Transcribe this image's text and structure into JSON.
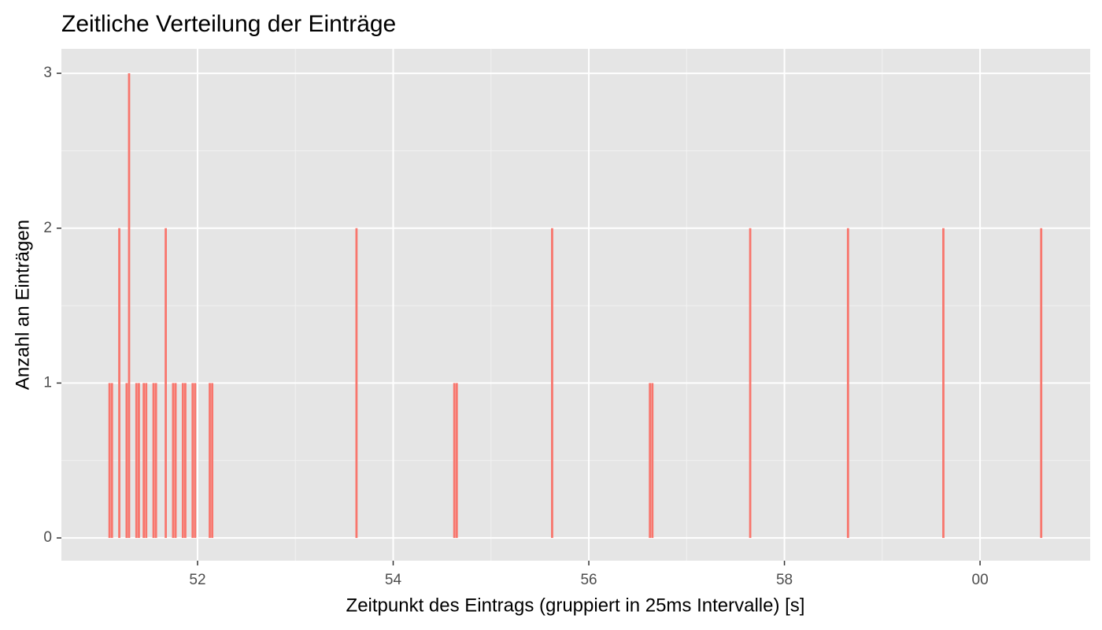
{
  "chart_data": {
    "type": "bar",
    "title": "Zeitliche Verteilung der Einträge",
    "x_label": "Zeitpunkt des Eintrags (gruppiert in 25ms Intervalle) [s]",
    "y_label": "Anzahl an Einträgen",
    "x": [
      51.1,
      51.125,
      51.2,
      51.275,
      51.3,
      51.375,
      51.4,
      51.45,
      51.475,
      51.55,
      51.575,
      51.675,
      51.75,
      51.775,
      51.85,
      51.875,
      51.95,
      51.975,
      52.125,
      52.15,
      53.625,
      54.625,
      54.65,
      55.625,
      56.625,
      56.65,
      57.65,
      58.65,
      59.625,
      60.625
    ],
    "values": [
      1,
      1,
      2,
      1,
      3,
      1,
      1,
      1,
      1,
      1,
      1,
      2,
      1,
      1,
      1,
      1,
      1,
      1,
      1,
      1,
      2,
      1,
      1,
      2,
      1,
      1,
      2,
      2,
      2,
      2
    ],
    "color": "#f8766d",
    "xlim": [
      50.608,
      61.126
    ],
    "xticks": [
      52,
      54,
      56,
      58,
      {
        "value": 60,
        "label": "00"
      }
    ],
    "ylim": [
      -0.147,
      3.158
    ],
    "yticks": [
      0,
      1,
      2,
      3
    ],
    "grid": true
  }
}
